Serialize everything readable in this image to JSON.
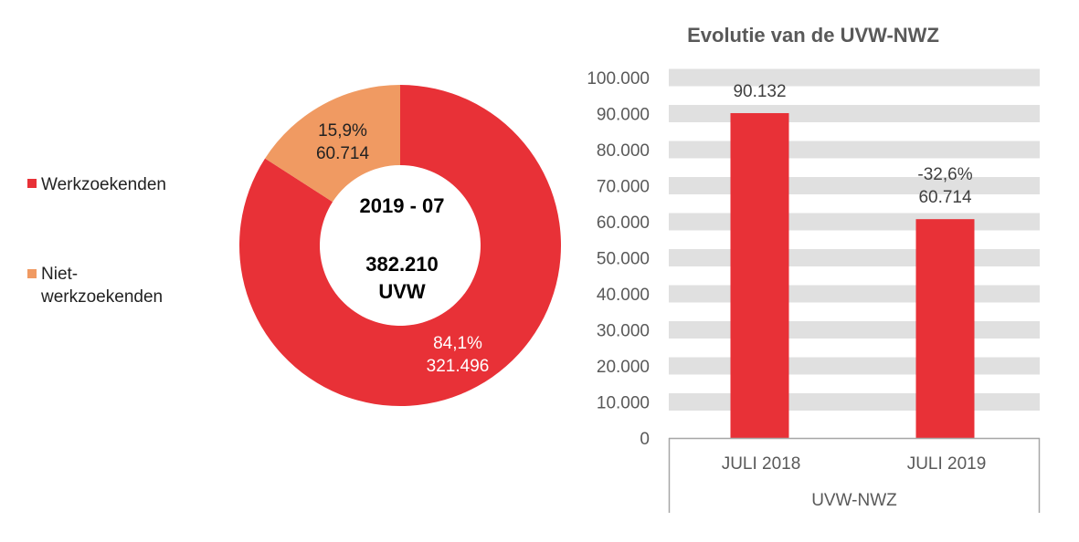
{
  "chart_data": [
    {
      "type": "pie",
      "variant": "donut",
      "center_text": {
        "line1": "2019 - 07",
        "line2": "382.210",
        "line3": "UVW"
      },
      "legend_position": "left",
      "slices": [
        {
          "name": "Werkzoekenden",
          "value": 321496,
          "percent_label": "84,1%",
          "value_label": "321.496",
          "color": "#e83137"
        },
        {
          "name": "Niet-werkzoekenden",
          "legend_lines": [
            "Niet-",
            "werkzoekenden"
          ],
          "value": 60714,
          "percent_label": "15,9%",
          "value_label": "60.714",
          "color": "#f09a62"
        }
      ]
    },
    {
      "type": "bar",
      "title": "Evolutie van de UVW-NWZ",
      "categories": [
        "JULI 2018",
        "JULI 2019"
      ],
      "group_label": "UVW-NWZ",
      "values": [
        90132,
        60714
      ],
      "data_labels": [
        [
          "90.132"
        ],
        [
          "-32,6%",
          "60.714"
        ]
      ],
      "ylim": [
        0,
        100000
      ],
      "yticks": [
        "0",
        "10.000",
        "20.000",
        "30.000",
        "40.000",
        "50.000",
        "60.000",
        "70.000",
        "80.000",
        "90.000",
        "100.000"
      ],
      "grid": "banded",
      "bar_color": "#e83137",
      "band_color": "#e0e0e0"
    }
  ]
}
